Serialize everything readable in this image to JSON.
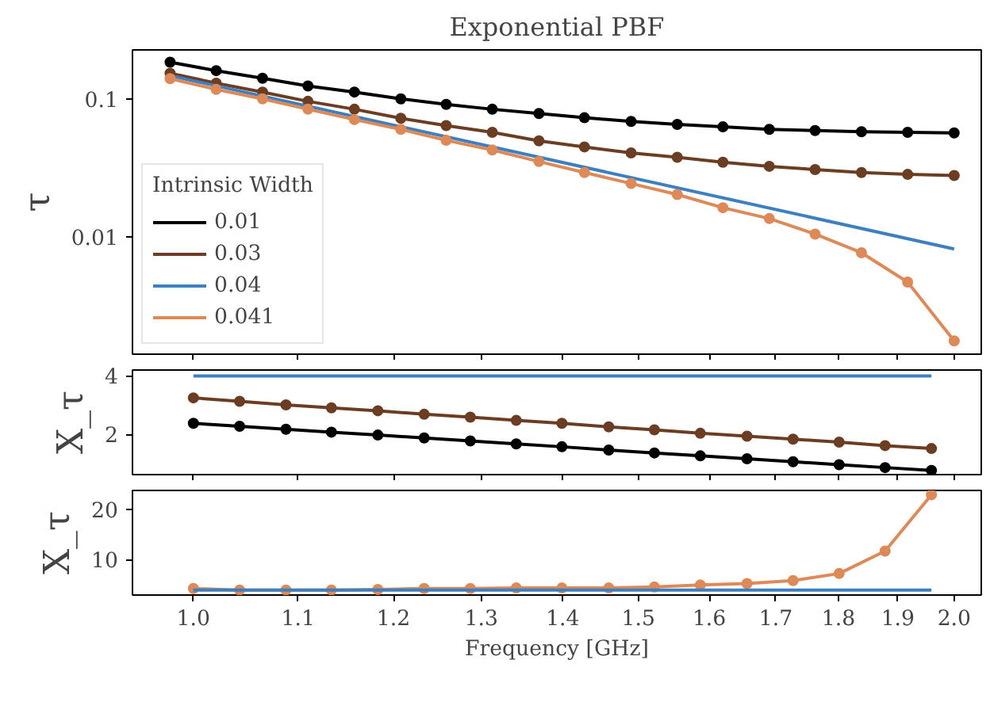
{
  "chart_data": [
    {
      "type": "line",
      "title": "Exponential PBF",
      "ylabel": "τ",
      "log": "xy",
      "xlim": [
        0.946,
        2.05
      ],
      "ylim": [
        0.00142,
        0.226
      ],
      "yticks": [
        0.1,
        0.01
      ],
      "tick_labels": "y",
      "grid": false,
      "legend": "bottom left",
      "legend_title": "Intrinsic Width",
      "marker": "circle",
      "line_style": "solid",
      "x": [
        0.979,
        1.021,
        1.065,
        1.11,
        1.158,
        1.208,
        1.259,
        1.313,
        1.37,
        1.428,
        1.49,
        1.554,
        1.62,
        1.69,
        1.762,
        1.838,
        1.917,
        2.0
      ],
      "series": [
        {
          "name": "0.01",
          "color": "#000000",
          "values": [
            0.184,
            0.16,
            0.141,
            0.124,
            0.112,
            0.1,
            0.0912,
            0.0841,
            0.0784,
            0.073,
            0.0687,
            0.0653,
            0.0627,
            0.0602,
            0.059,
            0.0578,
            0.0573,
            0.0567
          ]
        },
        {
          "name": "0.03",
          "color": "#6b3d23",
          "values": [
            0.153,
            0.13,
            0.112,
            0.096,
            0.0841,
            0.0723,
            0.064,
            0.0573,
            0.0497,
            0.0449,
            0.0406,
            0.0378,
            0.0348,
            0.0325,
            0.0308,
            0.0293,
            0.0284,
            0.0279
          ]
        },
        {
          "name": "0.04",
          "color": "#3d7fbf",
          "marker": "none",
          "x": [
            0.979,
            2.0
          ],
          "values": [
            0.147,
            0.0082
          ]
        },
        {
          "name": "0.041",
          "color": "#dd8a58",
          "values": [
            0.14,
            0.117,
            0.1,
            0.0841,
            0.0708,
            0.0602,
            0.0501,
            0.0427,
            0.0352,
            0.0293,
            0.0244,
            0.0203,
            0.0163,
            0.0136,
            0.0105,
            0.0077,
            0.00472,
            0.00177
          ]
        }
      ]
    },
    {
      "type": "line",
      "ylabel": "X_τ",
      "log": "x",
      "xlim": [
        0.946,
        2.05
      ],
      "ylim": [
        0.63,
        4.2
      ],
      "yticks": [
        2,
        4
      ],
      "tick_labels": "y",
      "grid": false,
      "marker": "circle",
      "line_style": "solid",
      "x": [
        1.0,
        1.043,
        1.088,
        1.134,
        1.183,
        1.234,
        1.287,
        1.342,
        1.399,
        1.46,
        1.522,
        1.587,
        1.656,
        1.727,
        1.801,
        1.878,
        1.959
      ],
      "series": [
        {
          "color": "#3d7fbf",
          "marker": "none",
          "x": [
            1.0,
            1.959
          ],
          "values": [
            4.0,
            4.0
          ]
        },
        {
          "color": "#6b3d23",
          "values": [
            3.25,
            3.13,
            3.01,
            2.91,
            2.81,
            2.69,
            2.59,
            2.48,
            2.38,
            2.26,
            2.16,
            2.04,
            1.94,
            1.84,
            1.74,
            1.62,
            1.52
          ]
        },
        {
          "color": "#000000",
          "values": [
            2.38,
            2.28,
            2.18,
            2.08,
            1.98,
            1.88,
            1.78,
            1.68,
            1.58,
            1.47,
            1.37,
            1.27,
            1.17,
            1.07,
            0.97,
            0.87,
            0.77
          ]
        }
      ]
    },
    {
      "type": "line",
      "ylabel": "X_τ",
      "xlabel": "Frequency [GHz]",
      "log": "x",
      "xlim": [
        0.946,
        2.05
      ],
      "ylim": [
        2.89,
        23.86
      ],
      "xticks": [
        {
          "value": 1.0,
          "label": "1.0"
        },
        1.1,
        1.2,
        1.3,
        1.4,
        1.5,
        1.6,
        1.7,
        1.8,
        1.9,
        {
          "value": 2.0,
          "label": "2.0"
        }
      ],
      "yticks": [
        10,
        20
      ],
      "grid": false,
      "marker": "circle",
      "line_style": "solid",
      "x": [
        1.0,
        1.043,
        1.088,
        1.134,
        1.183,
        1.234,
        1.287,
        1.342,
        1.399,
        1.46,
        1.522,
        1.587,
        1.656,
        1.727,
        1.801,
        1.878,
        1.959
      ],
      "series": [
        {
          "color": "#dd8a58",
          "values": [
            4.2,
            3.9,
            3.9,
            3.9,
            4.0,
            4.2,
            4.2,
            4.3,
            4.3,
            4.3,
            4.5,
            4.9,
            5.2,
            5.8,
            7.2,
            11.7,
            23.0
          ]
        },
        {
          "color": "#3d7fbf",
          "marker": "none",
          "x": [
            1.0,
            1.959
          ],
          "values": [
            3.9,
            3.9
          ]
        }
      ]
    }
  ]
}
